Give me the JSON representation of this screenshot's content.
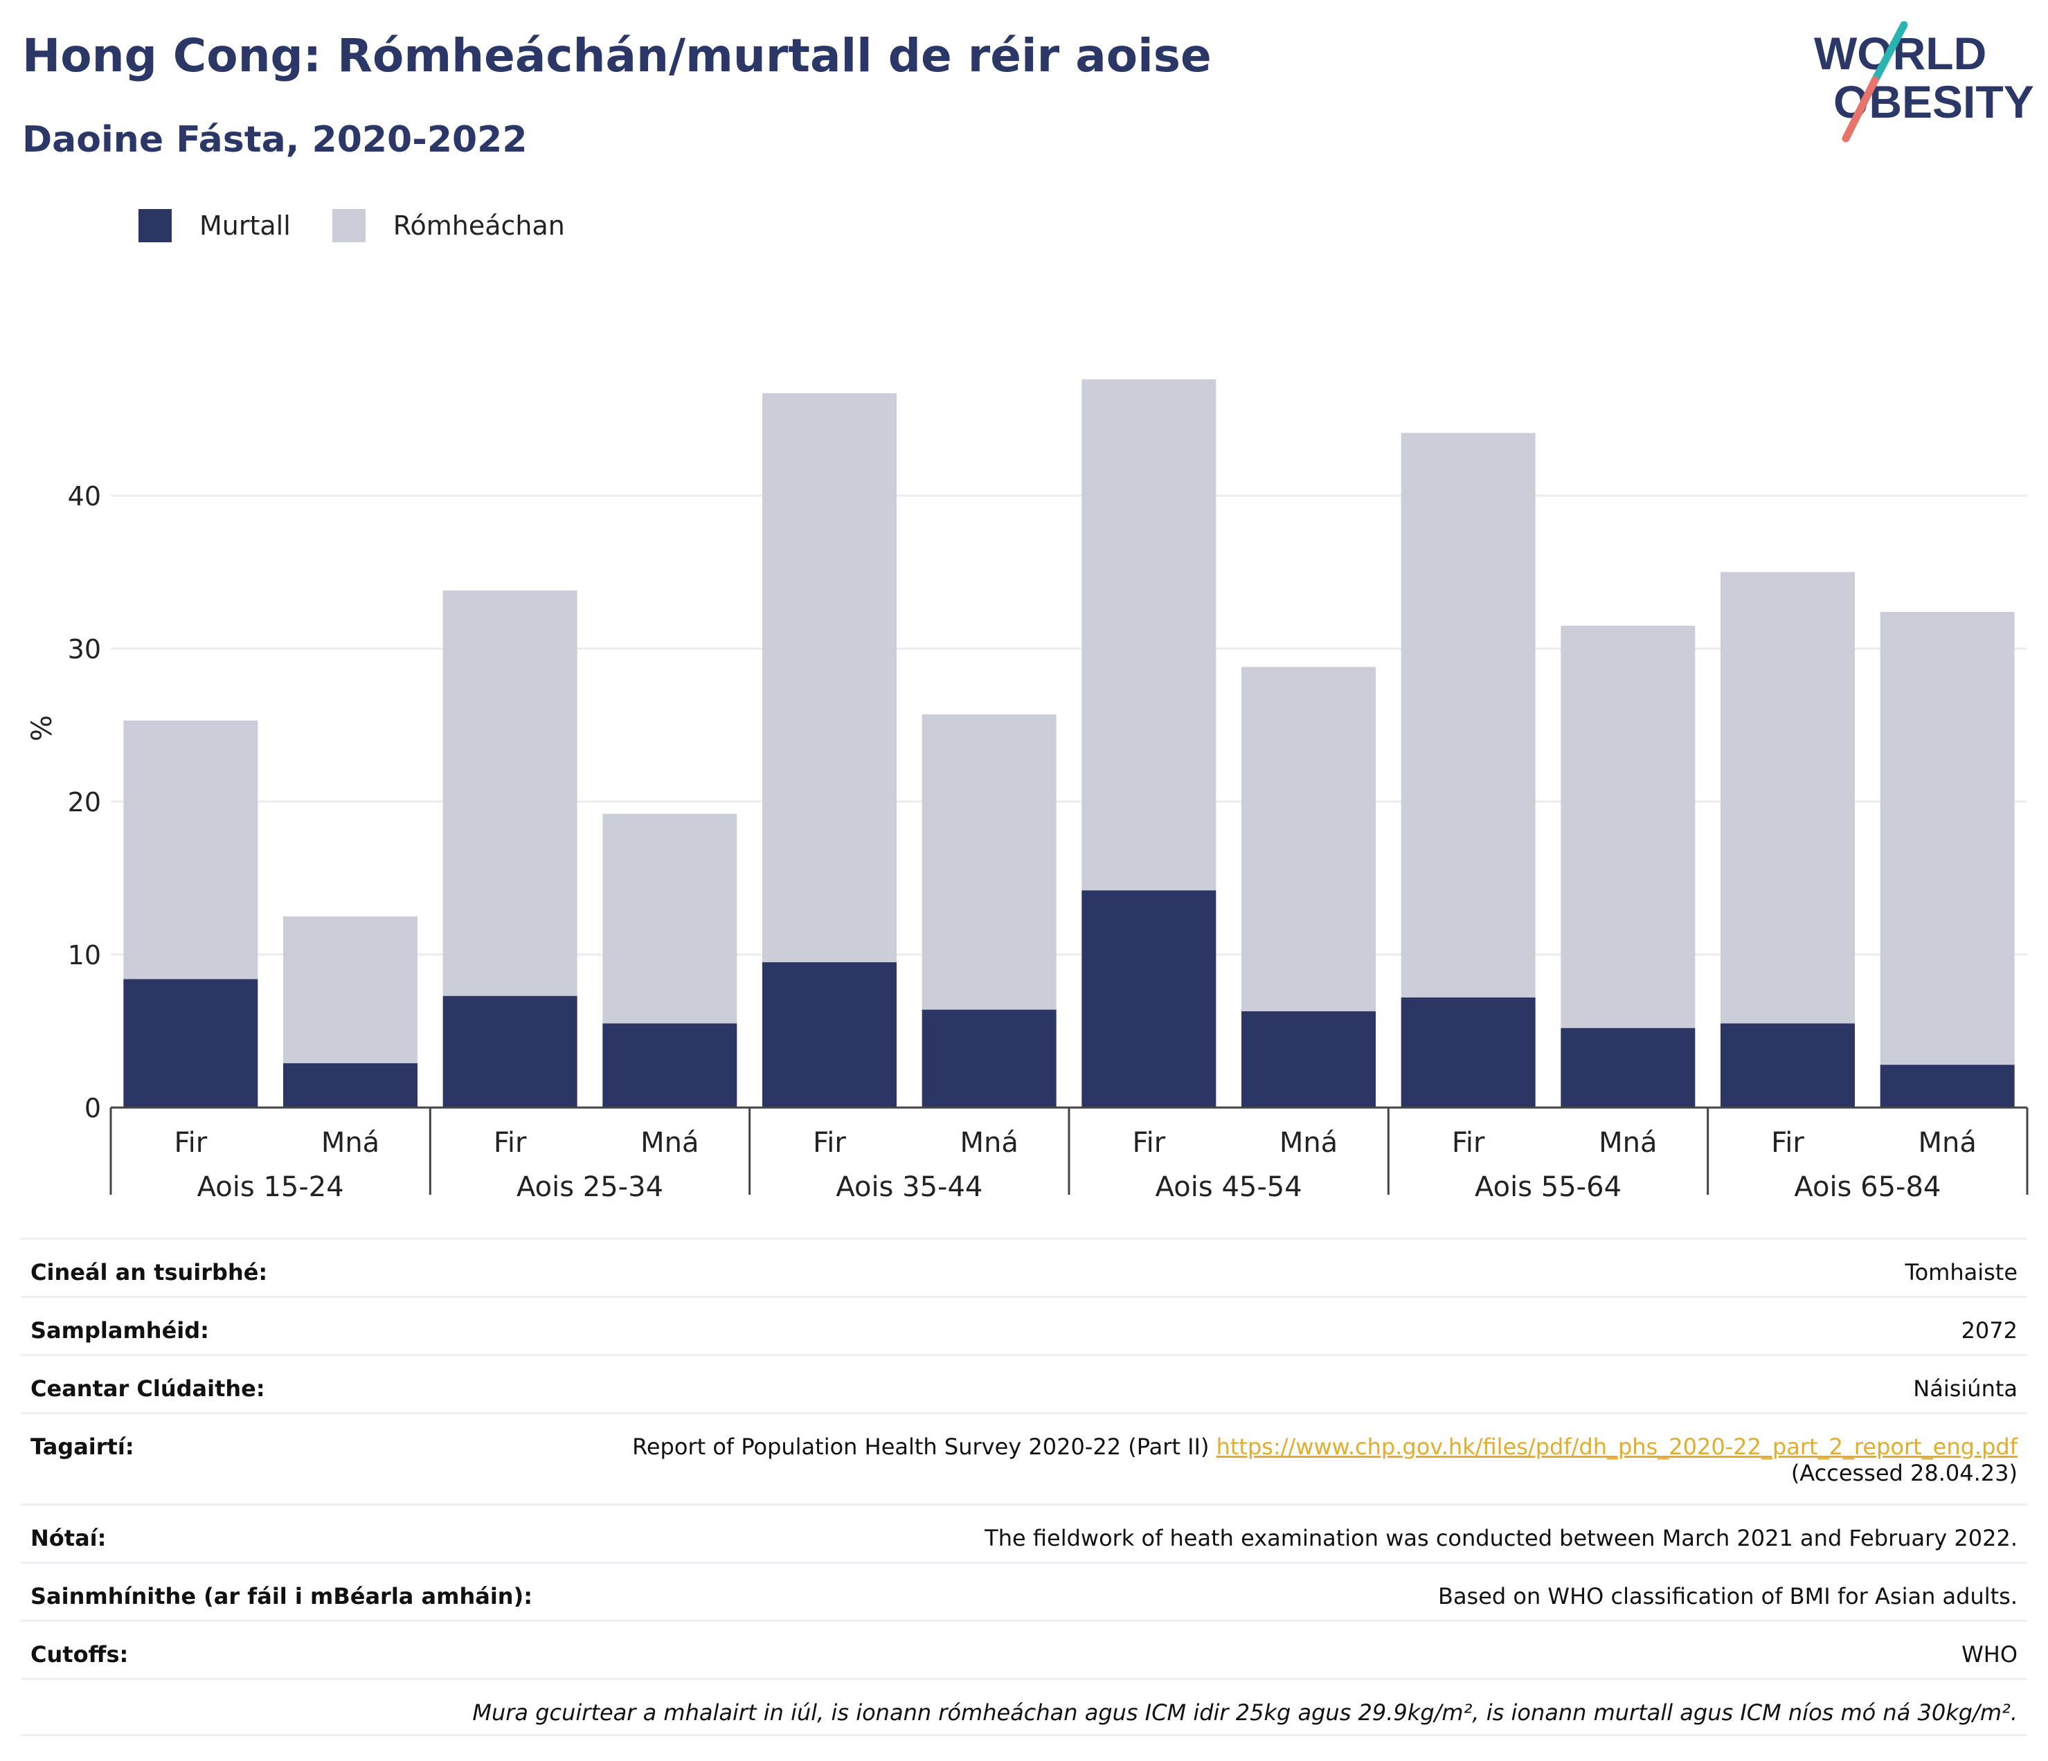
{
  "header": {
    "title": "Hong Cong: Rómheáchán/murtall de réir aoise",
    "subtitle": "Daoine Fásta, 2020-2022",
    "logo_line1": "WORLD",
    "logo_line2": "OBESITY"
  },
  "colors": {
    "murtall": "#2b3664",
    "romheachan": "#cbcdd8",
    "title": "#2b3766",
    "logo_teal": "#2bb3b1",
    "logo_coral": "#e8736a",
    "link": "#e3ac2b"
  },
  "legend": [
    {
      "label": "Murtall",
      "color": "#2b3664"
    },
    {
      "label": "Rómheáchan",
      "color": "#cbcdd8"
    }
  ],
  "chart_data": {
    "type": "bar",
    "stacked": true,
    "ylabel": "%",
    "ylim": [
      0,
      50
    ],
    "yticks": [
      0,
      10,
      20,
      30,
      40
    ],
    "grid": true,
    "legend_position": "top-left",
    "categories": [
      "Fir",
      "Mná",
      "Fir",
      "Mná",
      "Fir",
      "Mná",
      "Fir",
      "Mná",
      "Fir",
      "Mná",
      "Fir",
      "Mná"
    ],
    "groups": [
      "Aois 15-24",
      "Aois 25-34",
      "Aois 35-44",
      "Aois 45-54",
      "Aois 55-64",
      "Aois 65-84"
    ],
    "series": [
      {
        "name": "Murtall",
        "values": [
          8.4,
          2.9,
          7.3,
          5.5,
          9.5,
          6.4,
          14.2,
          6.3,
          7.2,
          5.2,
          5.5,
          2.8
        ]
      },
      {
        "name": "Rómheáchan",
        "values": [
          16.9,
          9.6,
          26.5,
          13.7,
          37.2,
          19.3,
          33.4,
          22.5,
          36.9,
          26.3,
          29.5,
          29.6
        ]
      }
    ]
  },
  "info": [
    {
      "key": "Cineál an tsuirbhé:",
      "value": "Tomhaiste"
    },
    {
      "key": "Samplamhéid:",
      "value": "2072"
    },
    {
      "key": "Ceantar Clúdaithe:",
      "value": "Náisiúnta"
    },
    {
      "key": "Tagairtí:",
      "value": "Report of Population Health Survey 2020-22 (Part II)",
      "link": "https://www.chp.gov.hk/files/pdf/dh_phs_2020-22_part_2_report_eng.pdf",
      "extra": "(Accessed 28.04.23)"
    },
    {
      "key": "Nótaí:",
      "value": "The fieldwork of heath examination was conducted between March 2021 and February 2022."
    },
    {
      "key": "Sainmhínithe (ar fáil i mBéarla amháin):",
      "value": "Based on WHO classification of BMI for Asian adults."
    },
    {
      "key": "Cutoffs:",
      "value": "WHO"
    }
  ],
  "footnote": "Mura gcuirtear a mhalairt in iúl, is ionann rómheáchan agus ICM idir 25kg agus 29.9kg/m², is ionann murtall agus ICM níos mó ná 30kg/m²."
}
